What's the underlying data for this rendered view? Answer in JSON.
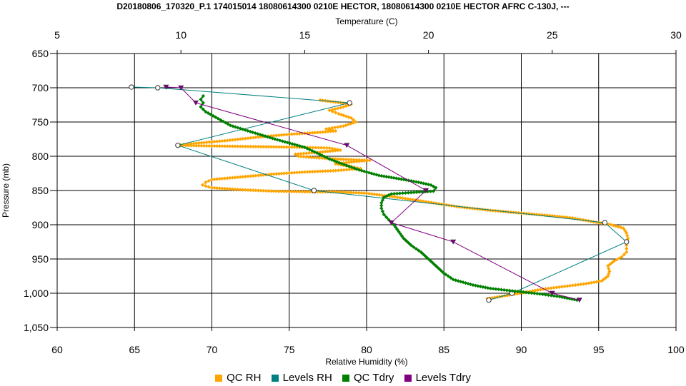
{
  "chart_data": {
    "type": "line",
    "title": "D20180806_170320_P.1 174015014 18080614300 0210E HECTOR, 18080614300 0210E HECTOR AFRC C-130J, ---",
    "xlabel_bottom": "Relative Humidity (%)",
    "xlabel_top": "Temperature (C)",
    "ylabel": "Pressure (mb)",
    "x_bottom_lim": [
      60,
      100
    ],
    "x_bottom_ticks": [
      "60",
      "65",
      "70",
      "75",
      "80",
      "85",
      "90",
      "95",
      "100"
    ],
    "x_top_lim": [
      5,
      30
    ],
    "x_top_ticks": [
      "5",
      "10",
      "15",
      "20",
      "25",
      "30"
    ],
    "y_lim": [
      650,
      1050
    ],
    "y_inverted": true,
    "y_ticks": [
      "650",
      "700",
      "750",
      "800",
      "850",
      "900",
      "950",
      "1,000",
      "1,050"
    ],
    "grid": true,
    "legend_position": "bottom",
    "series": [
      {
        "name": "QC RH",
        "axis": "bottom",
        "color": "#ffa500",
        "marker": "diamond",
        "points": [
          [
            87.8,
            1008
          ],
          [
            88.6,
            1005
          ],
          [
            89.4,
            1002
          ],
          [
            90.4,
            998
          ],
          [
            91.4,
            994
          ],
          [
            92.8,
            990
          ],
          [
            94.2,
            986
          ],
          [
            95.2,
            982
          ],
          [
            95.6,
            975
          ],
          [
            95.7,
            968
          ],
          [
            95.6,
            960
          ],
          [
            96.0,
            953
          ],
          [
            96.5,
            947
          ],
          [
            96.8,
            940
          ],
          [
            96.8,
            930
          ],
          [
            96.9,
            920
          ],
          [
            96.8,
            912
          ],
          [
            96.6,
            905
          ],
          [
            95.8,
            900
          ],
          [
            95.0,
            897
          ],
          [
            94.0,
            893
          ],
          [
            93.3,
            890
          ],
          [
            92.0,
            887
          ],
          [
            90.0,
            883
          ],
          [
            88.0,
            879
          ],
          [
            86.0,
            874
          ],
          [
            84.0,
            867
          ],
          [
            82.0,
            860
          ],
          [
            80.0,
            854
          ],
          [
            78.0,
            852
          ],
          [
            76.5,
            852
          ],
          [
            74.0,
            851
          ],
          [
            72.0,
            849
          ],
          [
            70.0,
            846
          ],
          [
            69.4,
            842
          ],
          [
            69.6,
            838
          ],
          [
            70.0,
            834
          ],
          [
            72.0,
            830
          ],
          [
            74.0,
            826
          ],
          [
            76.0,
            823
          ],
          [
            78.0,
            821
          ],
          [
            79.6,
            818
          ],
          [
            79.0,
            815
          ],
          [
            78.0,
            811
          ],
          [
            79.2,
            808
          ],
          [
            80.2,
            806
          ],
          [
            79.0,
            805
          ],
          [
            78.0,
            804
          ],
          [
            76.6,
            802
          ],
          [
            75.6,
            800
          ],
          [
            75.4,
            797
          ],
          [
            77.0,
            794
          ],
          [
            78.3,
            791
          ],
          [
            77.6,
            788
          ],
          [
            76.0,
            787
          ],
          [
            73.0,
            786
          ],
          [
            70.0,
            785
          ],
          [
            67.8,
            784
          ],
          [
            69.0,
            781
          ],
          [
            71.0,
            777
          ],
          [
            73.0,
            772
          ],
          [
            75.0,
            768
          ],
          [
            77.0,
            765
          ],
          [
            78.0,
            763
          ],
          [
            77.4,
            760
          ],
          [
            78.5,
            756
          ],
          [
            79.3,
            750
          ],
          [
            79.0,
            744
          ],
          [
            78.2,
            738
          ],
          [
            77.6,
            733
          ],
          [
            78.5,
            728
          ],
          [
            79.0,
            724
          ],
          [
            77.0,
            718
          ]
        ]
      },
      {
        "name": "Levels RH",
        "axis": "bottom",
        "color": "#008080",
        "marker": "circle",
        "points": [
          [
            87.9,
            1010
          ],
          [
            89.4,
            1000
          ],
          [
            96.8,
            925
          ],
          [
            95.4,
            897
          ],
          [
            76.6,
            850
          ],
          [
            67.8,
            784
          ],
          [
            78.9,
            722
          ],
          [
            66.5,
            700
          ],
          [
            64.8,
            699
          ]
        ]
      },
      {
        "name": "QC Tdry",
        "axis": "top",
        "color": "#008000",
        "marker": "diamond",
        "points": [
          [
            26.0,
            1010
          ],
          [
            25.3,
            1005
          ],
          [
            24.5,
            1001
          ],
          [
            23.5,
            997
          ],
          [
            22.5,
            993
          ],
          [
            21.8,
            988
          ],
          [
            21.0,
            980
          ],
          [
            20.6,
            970
          ],
          [
            20.3,
            960
          ],
          [
            20.0,
            950
          ],
          [
            19.7,
            940
          ],
          [
            19.3,
            930
          ],
          [
            19.0,
            920
          ],
          [
            18.8,
            910
          ],
          [
            18.6,
            900
          ],
          [
            18.4,
            893
          ],
          [
            18.2,
            885
          ],
          [
            18.1,
            876
          ],
          [
            18.1,
            868
          ],
          [
            18.2,
            860
          ],
          [
            18.5,
            855
          ],
          [
            19.3,
            853
          ],
          [
            20.2,
            851
          ],
          [
            20.3,
            846
          ],
          [
            20.1,
            842
          ],
          [
            19.6,
            838
          ],
          [
            19.0,
            834
          ],
          [
            18.0,
            828
          ],
          [
            17.2,
            820
          ],
          [
            16.5,
            811
          ],
          [
            16.0,
            804
          ],
          [
            15.6,
            797
          ],
          [
            15.0,
            787
          ],
          [
            13.8,
            775
          ],
          [
            12.8,
            764
          ],
          [
            12.0,
            755
          ],
          [
            11.5,
            745
          ],
          [
            11.0,
            735
          ],
          [
            10.8,
            728
          ],
          [
            10.9,
            722
          ],
          [
            10.8,
            717
          ],
          [
            10.9,
            712
          ]
        ]
      },
      {
        "name": "Levels Tdry",
        "axis": "top",
        "color": "#800080",
        "marker": "triangle",
        "points": [
          [
            26.1,
            1010
          ],
          [
            25.0,
            1000
          ],
          [
            21.0,
            925
          ],
          [
            18.5,
            897
          ],
          [
            19.9,
            850
          ],
          [
            16.7,
            784
          ],
          [
            10.6,
            722
          ],
          [
            10.0,
            700
          ],
          [
            9.4,
            699
          ]
        ]
      }
    ]
  }
}
